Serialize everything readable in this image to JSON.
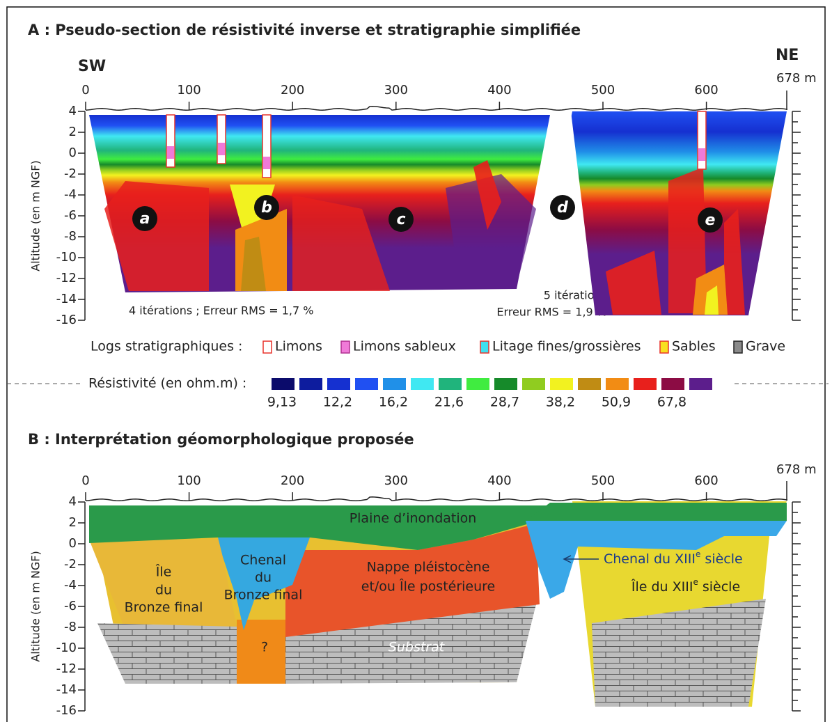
{
  "panel_a": {
    "title": "A : Pseudo-section de résistivité inverse et stratigraphie simplifiée",
    "sw": "SW",
    "ne": "NE",
    "x_end": "678 m",
    "xticks": [
      0,
      100,
      200,
      300,
      400,
      500,
      600
    ],
    "y_label": "Altitude (en m NGF)",
    "yticks": [
      4,
      2,
      0,
      -2,
      -4,
      -6,
      -8,
      -10,
      -12,
      -14,
      -16
    ],
    "markers": [
      "a",
      "b",
      "c",
      "d",
      "e"
    ],
    "note_left": "4 itérations ; Erreur RMS = 1,7 %",
    "note_right": [
      "5 itérations",
      "Erreur RMS = 1,9 %"
    ]
  },
  "logs": {
    "title": "Logs stratigraphiques :",
    "items": [
      {
        "name": "Limons",
        "fill": "#ffffff",
        "stroke": "#e8322b"
      },
      {
        "name": "Limons sableux",
        "fill": "#f07ad8",
        "stroke": "#b03090"
      },
      {
        "name": "Litage fines/grossières",
        "fill": "#40e0f0",
        "stroke": "#e8322b"
      },
      {
        "name": "Sables",
        "fill": "#f8e020",
        "stroke": "#e8322b"
      },
      {
        "name": "Grave",
        "fill": "#8a8a8a",
        "stroke": "#222222"
      }
    ]
  },
  "resistivity": {
    "title": "Résistivité (en ohm.m) :",
    "colors": [
      "#0b0b6b",
      "#0d1c9e",
      "#1530d0",
      "#2050f2",
      "#2090e8",
      "#40e8f2",
      "#20b47c",
      "#40ec40",
      "#168a2a",
      "#90cc20",
      "#f2f220",
      "#c08c14",
      "#f28c14",
      "#e8201c",
      "#8c0c44",
      "#5c1e8c"
    ],
    "labels": [
      "9,13",
      "12,2",
      "16,2",
      "21,6",
      "28,7",
      "38,2",
      "50,9",
      "67,8"
    ]
  },
  "panel_b": {
    "title": "B : Interprétation géomorphologique proposée",
    "x_end": "678 m",
    "xticks": [
      0,
      100,
      200,
      300,
      400,
      500,
      600
    ],
    "y_label": "Altitude (en m NGF)",
    "yticks": [
      4,
      2,
      0,
      -2,
      -4,
      -6,
      -8,
      -10,
      -12,
      -14,
      -16
    ],
    "units": {
      "floodplain": "Plaine d’inondation",
      "bronze_island": [
        "Île",
        "du",
        "Bronze final"
      ],
      "bronze_channel": [
        "Chenal",
        "du",
        "Bronze final"
      ],
      "nappe": [
        "Nappe pléistocène",
        "et/ou Île postérieure"
      ],
      "channel_13": [
        "Chenal du XIII",
        "e",
        " siècle"
      ],
      "island_13": [
        "Île du XIII",
        "e",
        " siècle"
      ],
      "substrate": "Substrat",
      "unknown": "?"
    }
  }
}
